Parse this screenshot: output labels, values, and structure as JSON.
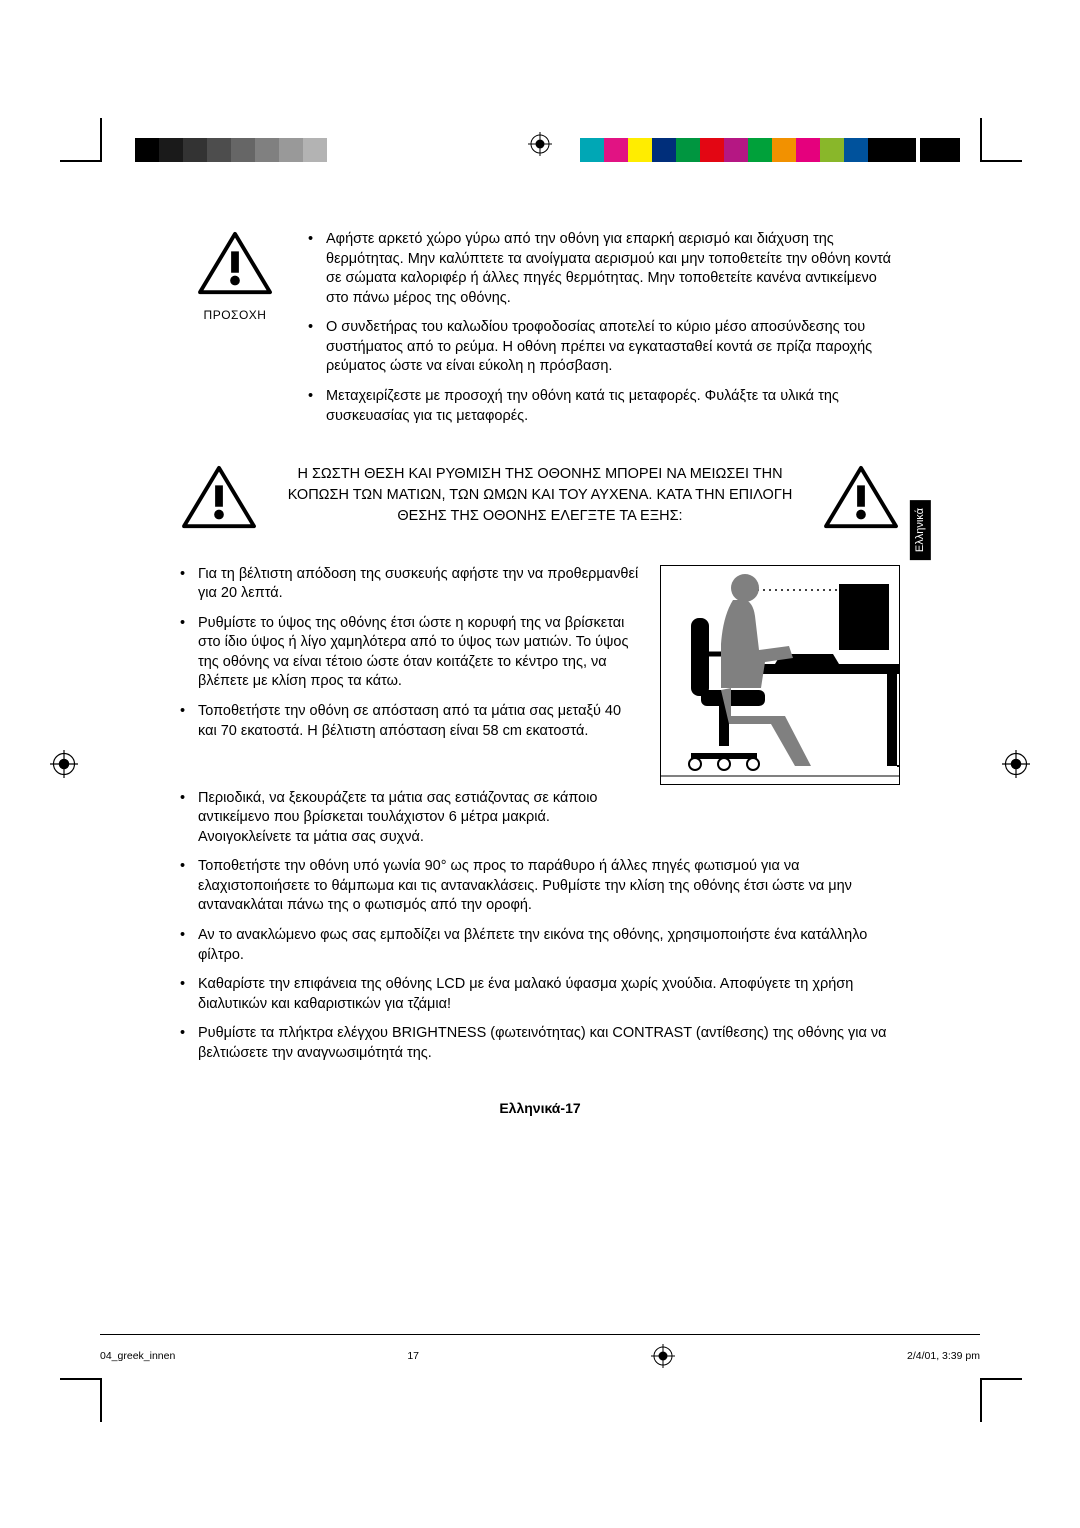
{
  "printer_marks": {
    "gray_swatches": [
      "#000000",
      "#1a1a1a",
      "#333333",
      "#4d4d4d",
      "#666666",
      "#808080",
      "#999999",
      "#b3b3b3",
      "#ffffff"
    ],
    "color_swatches": [
      "#00a7b5",
      "#e11383",
      "#ffed00",
      "#002e7a",
      "#009640",
      "#e30613",
      "#b51783",
      "#00a13a",
      "#f29100",
      "#e5007d",
      "#89b72a",
      "#00529c",
      "#000000",
      "#000000"
    ],
    "black_bar_color": "#000000"
  },
  "warning": {
    "label": "ΠΡΟΣΟΧΗ"
  },
  "top_bullets": [
    "Αφήστε αρκετό χώρο γύρω από την οθόνη για επαρκή αερισμό και διάχυση της θερμότητας. Μην καλύπτετε τα ανοίγματα αερισμού και μην τοποθετείτε την οθόνη κοντά σε σώματα καλοριφέρ ή άλλες πηγές θερμότητας. Μην τοποθετείτε κανένα αντικείμενο στο πάνω μέρος της οθόνης.",
    "Ο συνδετήρας του καλωδίου τροφοδοσίας αποτελεί το κύριο μέσο αποσύνδεσης του συστήματος από το ρεύμα. Η οθόνη πρέπει να εγκατασταθεί κοντά σε πρίζα παροχής ρεύματος ώστε να είναι εύκολη η πρόσβαση.",
    "Μεταχειρίζεστε με προσοχή την οθόνη κατά τις μεταφορές. Φυλάξτε τα υλικά της συσκευασίας για τις μεταφορές."
  ],
  "mid_text": "Η ΣΩΣΤΗ ΘΕΣΗ ΚΑΙ ΡΥΘΜΙΣΗ ΤΗΣ ΟΘΟΝΗΣ ΜΠΟΡΕΙ ΝΑ ΜΕΙΩΣΕΙ ΤΗΝ ΚΟΠΩΣΗ ΤΩΝ ΜΑΤΙΩΝ, ΤΩΝ ΩΜΩΝ ΚΑΙ ΤΟΥ ΑΥΧΕΝΑ. ΚΑΤΑ ΤΗΝ ΕΠΙΛΟΓΗ ΘΕΣΗΣ ΤΗΣ ΟΘΟΝΗΣ ΕΛΕΓΞΤΕ ΤΑ ΕΞΗΣ:",
  "lang_tab": "Ελληνικά",
  "left_bullets": [
    "Για τη βέλτιστη απόδοση της συσκευής αφήστε την να προθερμανθεί για 20 λεπτά.",
    "Ρυθμίστε το ύψος της οθόνης έτσι ώστε η κορυφή της να βρίσκεται στο ίδιο ύψος ή λίγο χαμηλότερα από το ύψος των ματιών. Το ύψος της οθόνης να είναι τέτοιο ώστε όταν κοιτάζετε το κέντρο της, να βλέπετε με κλίση προς τα κάτω.",
    "Τοποθετήστε την οθόνη σε απόσταση από τα μάτια σας μεταξύ 40 και 70 εκατοστά. Η βέλτιστη απόσταση είναι 58 cm εκατοστά."
  ],
  "full_bullets": [
    "Περιοδικά, να ξεκουράζετε τα μάτια σας εστιάζοντας σε κάποιο αντικείμενο που βρίσκεται τουλάχιστον 6 μέτρα μακριά. Ανοιγοκλείνετε τα μάτια σας συχνά.",
    "Τοποθετήστε την οθόνη υπό γωνία 90° ως προς το παράθυρο ή άλλες πηγές φωτισμού για να ελαχιστοποιήσετε το θάμπωμα και τις αντανακλάσεις. Ρυθμίστε την κλίση της οθόνης έτσι ώστε να μην αντανακλάται πάνω της ο φωτισμός από την οροφή.",
    "Αν το ανακλώμενο φως σας εμποδίζει να βλέπετε την εικόνα της οθόνης, χρησιμοποιήστε ένα κατάλληλο φίλτρο.",
    "Καθαρίστε την επιφάνεια της οθόνης LCD με ένα μαλακό ύφασμα χωρίς χνούδια. Αποφύγετε τη χρήση διαλυτικών και καθαριστικών για τζάμια!",
    "Ρυθμίστε τα πλήκτρα ελέγχου BRIGHTNESS (φωτεινότητας) και CONTRAST (αντίθεσης) της οθόνης για να βελτιώσετε την αναγνωσιμότητά της."
  ],
  "page_num": "Ελληνικά-17",
  "footer": {
    "file": "04_greek_innen",
    "page": "17",
    "timestamp": "2/4/01, 3:39 pm"
  },
  "ergo_diagram": {
    "type": "pictogram",
    "border_color": "#000000",
    "bg_color": "#ffffff",
    "silhouette_color": "#808080",
    "desk_color": "#000000",
    "dotted_line_color": "#000000"
  }
}
